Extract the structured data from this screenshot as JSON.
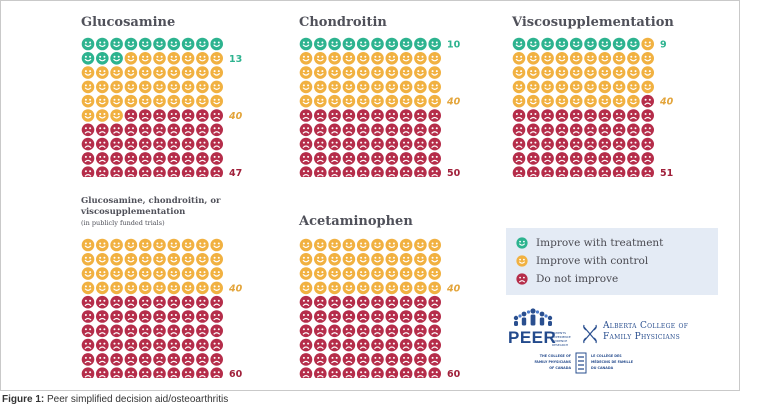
{
  "colors": {
    "improve_treatment": "#2db38f",
    "improve_control": "#f1b141",
    "not_improve": "#b52d4a",
    "legend_bg": "#e4ebf5",
    "title": "#50515a"
  },
  "chart_data": [
    {
      "type": "icon-array",
      "title": "Glucosamine",
      "total": 100,
      "columns": 10,
      "values": {
        "improve_treatment": 13,
        "improve_control": 40,
        "not_improve": 47
      }
    },
    {
      "type": "icon-array",
      "title": "Chondroitin",
      "total": 100,
      "columns": 10,
      "values": {
        "improve_treatment": 10,
        "improve_control": 40,
        "not_improve": 50
      }
    },
    {
      "type": "icon-array",
      "title": "Viscosupplementation",
      "total": 100,
      "columns": 10,
      "values": {
        "improve_treatment": 9,
        "improve_control": 40,
        "not_improve": 51
      }
    },
    {
      "type": "icon-array",
      "title": "Glucosamine, chondroitin, or viscosupplementation",
      "subtitle": "(in publicly funded trials)",
      "total": 100,
      "columns": 10,
      "values": {
        "improve_treatment": 0,
        "improve_control": 40,
        "not_improve": 60
      }
    },
    {
      "type": "icon-array",
      "title": "Acetaminophen",
      "total": 100,
      "columns": 10,
      "values": {
        "improve_treatment": 0,
        "improve_control": 40,
        "not_improve": 60
      }
    }
  ],
  "legend": [
    {
      "key": "improve_treatment",
      "label": "Improve with treatment",
      "icon": "smiley-face-icon"
    },
    {
      "key": "improve_control",
      "label": "Improve with control",
      "icon": "smiley-face-icon"
    },
    {
      "key": "not_improve",
      "label": "Do not improve",
      "icon": "frowny-face-icon"
    }
  ],
  "logos": {
    "peer": {
      "wordmark": "PEER",
      "tagline": "PATIENTS EXPERIENCE EVIDENCE RESEARCH"
    },
    "acfp": {
      "line1": "Alberta College of",
      "line2": "Family Physicians"
    },
    "cfpc": {
      "en": [
        "THE COLLEGE OF",
        "FAMILY PHYSICIANS",
        "OF CANADA"
      ],
      "fr": [
        "LE COLLÈGE DES",
        "MÉDECINS DE FAMILLE",
        "DU CANADA"
      ]
    }
  },
  "caption": {
    "label": "Figure 1:",
    "text": "Peer simplified decision aid/osteoarthritis"
  }
}
